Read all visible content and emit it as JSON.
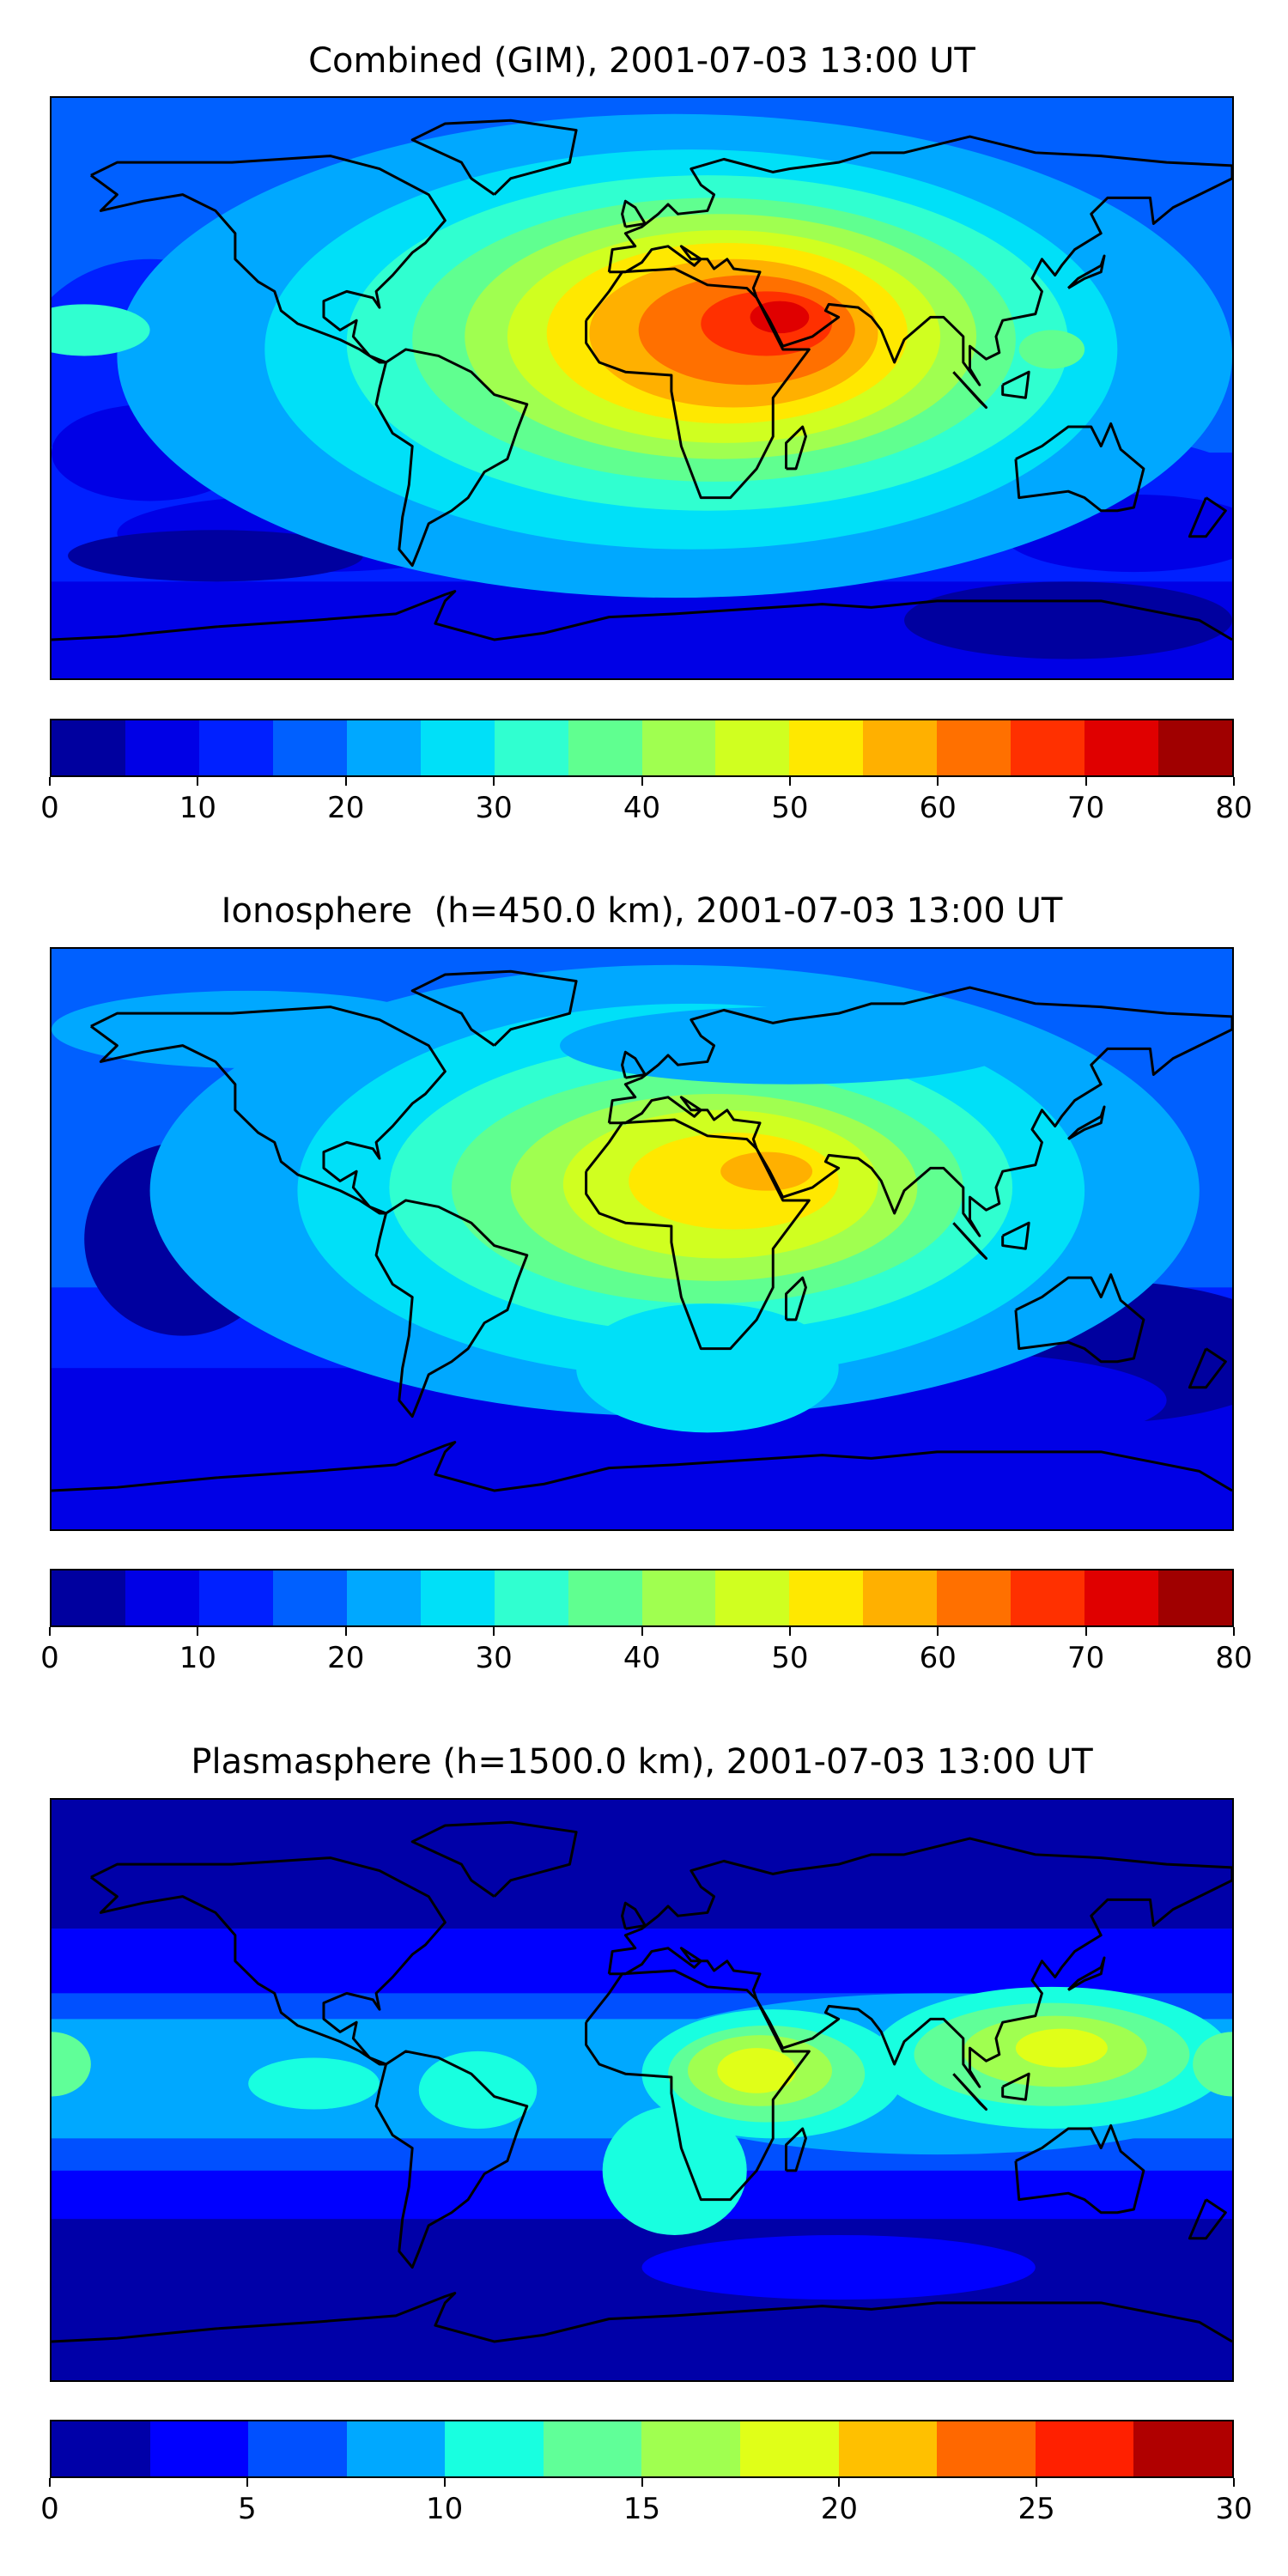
{
  "chart_data": [
    {
      "type": "heatmap",
      "title": "Combined (GIM), 2001-07-03 13:00 UT",
      "projection": "equirectangular world map with coastlines",
      "colorbar": {
        "ticks": [
          "0",
          "10",
          "20",
          "30",
          "40",
          "50",
          "60",
          "70",
          "80"
        ],
        "range": [
          0,
          80
        ],
        "step": 5,
        "colors": [
          "#00009f",
          "#0000e6",
          "#0020ff",
          "#0060ff",
          "#00a8ff",
          "#00e0f8",
          "#30ffd0",
          "#60ff90",
          "#a0ff50",
          "#d0ff20",
          "#ffe800",
          "#ffb000",
          "#ff7000",
          "#ff3000",
          "#e00000",
          "#a00000"
        ]
      },
      "peak_region": "Arabia / NE Africa, 65-75"
    },
    {
      "type": "heatmap",
      "title": "Ionosphere  (h=450.0 km), 2001-07-03 13:00 UT",
      "projection": "equirectangular world map with coastlines",
      "colorbar": {
        "ticks": [
          "0",
          "10",
          "20",
          "30",
          "40",
          "50",
          "60",
          "70",
          "80"
        ],
        "range": [
          0,
          80
        ],
        "step": 5,
        "colors": [
          "#00009f",
          "#0000e6",
          "#0020ff",
          "#0060ff",
          "#00a8ff",
          "#00e0f8",
          "#30ffd0",
          "#60ff90",
          "#a0ff50",
          "#d0ff20",
          "#ffe800",
          "#ffb000",
          "#ff7000",
          "#ff3000",
          "#e00000",
          "#a00000"
        ]
      },
      "peak_region": "North Africa / Arabia, 55-60"
    },
    {
      "type": "heatmap",
      "title": "Plasmasphere (h=1500.0 km), 2001-07-03 13:00 UT",
      "projection": "equirectangular world map with coastlines",
      "colorbar": {
        "ticks": [
          "0",
          "5",
          "10",
          "15",
          "20",
          "25",
          "30"
        ],
        "range": [
          0,
          30
        ],
        "step": 2.5,
        "colors": [
          "#0000a8",
          "#0000ff",
          "#0050ff",
          "#00a8ff",
          "#18ffe0",
          "#60ff98",
          "#a0ff50",
          "#e0ff18",
          "#ffc000",
          "#ff6800",
          "#ff2000",
          "#b00000"
        ]
      },
      "peak_region": "East Africa and SE Asia, 17.5-20"
    }
  ]
}
